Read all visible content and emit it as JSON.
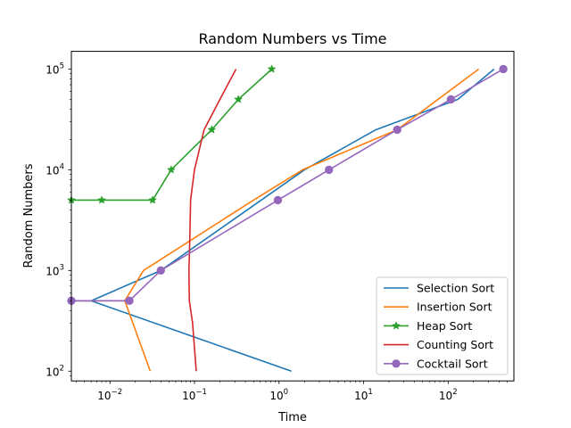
{
  "chart_data": {
    "type": "line",
    "title": "Random Numbers vs Time",
    "xlabel": "Time",
    "ylabel": "Random Numbers",
    "xscale": "log",
    "yscale": "log",
    "xlim": [
      0.0035,
      600
    ],
    "ylim": [
      80,
      150000
    ],
    "x_ticks": [
      {
        "value": 0.01,
        "base": "10",
        "exp": "−2"
      },
      {
        "value": 0.1,
        "base": "10",
        "exp": "−1"
      },
      {
        "value": 1,
        "base": "10",
        "exp": "0"
      },
      {
        "value": 10,
        "base": "10",
        "exp": "1"
      },
      {
        "value": 100,
        "base": "10",
        "exp": "2"
      }
    ],
    "y_ticks": [
      {
        "value": 100,
        "base": "10",
        "exp": "2"
      },
      {
        "value": 1000,
        "base": "10",
        "exp": "3"
      },
      {
        "value": 10000,
        "base": "10",
        "exp": "4"
      },
      {
        "value": 100000,
        "base": "10",
        "exp": "5"
      }
    ],
    "grid": false,
    "legend_position": "lower right",
    "series": [
      {
        "name": "Selection Sort",
        "color": "#1f77b4",
        "marker": "none",
        "x": [
          1.4,
          0.006,
          0.0035,
          0.006,
          0.04,
          2,
          14,
          130,
          350
        ],
        "y": [
          100,
          500,
          500,
          500,
          1000,
          10000,
          25000,
          50000,
          100000
        ]
      },
      {
        "name": "Insertion Sort",
        "color": "#ff7f0e",
        "marker": "none",
        "x": [
          0.03,
          0.015,
          0.0035,
          0.015,
          0.025,
          0.5,
          1.9,
          25,
          230
        ],
        "y": [
          100,
          500,
          500,
          500,
          1000,
          5000,
          10000,
          25000,
          100000
        ]
      },
      {
        "name": "Heap Sort",
        "color": "#2ca02c",
        "marker": "star",
        "x": [
          0.0035,
          0.008,
          0.032,
          0.053,
          0.16,
          0.33,
          0.82
        ],
        "y": [
          5000,
          5000,
          5000,
          10000,
          25000,
          50000,
          100000
        ]
      },
      {
        "name": "Counting Sort",
        "color": "#d62728",
        "marker": "none",
        "x": [
          0.105,
          0.095,
          0.087,
          0.086,
          0.088,
          0.09,
          0.1,
          0.13,
          0.2,
          0.31
        ],
        "y": [
          100,
          300,
          500,
          1000,
          2000,
          5000,
          10000,
          25000,
          50000,
          100000
        ]
      },
      {
        "name": "Cocktail Sort",
        "color": "#9467bd",
        "marker": "circle",
        "x": [
          0.0035,
          0.017,
          0.04,
          0.97,
          3.9,
          25,
          108,
          450
        ],
        "y": [
          500,
          500,
          1000,
          5000,
          10000,
          25000,
          50000,
          100000
        ]
      }
    ]
  }
}
